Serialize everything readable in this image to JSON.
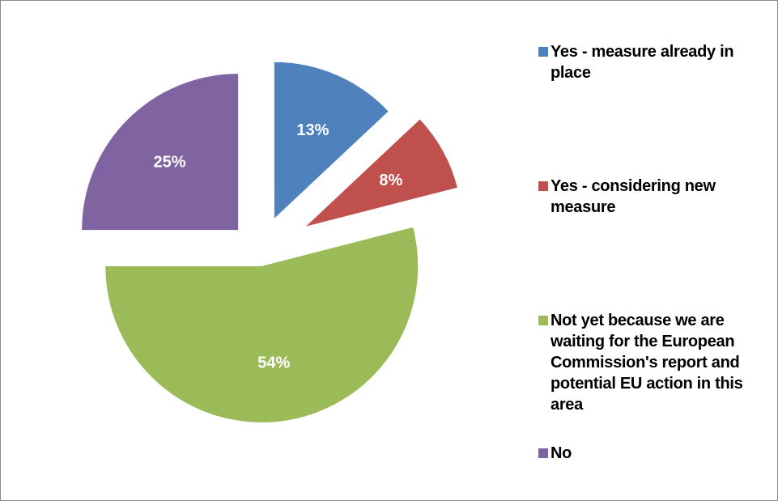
{
  "chart_data": {
    "type": "pie",
    "exploded": true,
    "categories": [
      "Yes - measure already in place",
      "Yes - considering new measure",
      "Not yet because we are waiting for the European Commission's report and potential EU action in this area",
      "No"
    ],
    "values": [
      13,
      8,
      54,
      25
    ],
    "value_labels": [
      "13%",
      "8%",
      "54%",
      "25%"
    ],
    "colors": [
      "#4f81bd",
      "#c0504d",
      "#9bbb59",
      "#8064a2"
    ],
    "legend_position": "right",
    "title": ""
  }
}
